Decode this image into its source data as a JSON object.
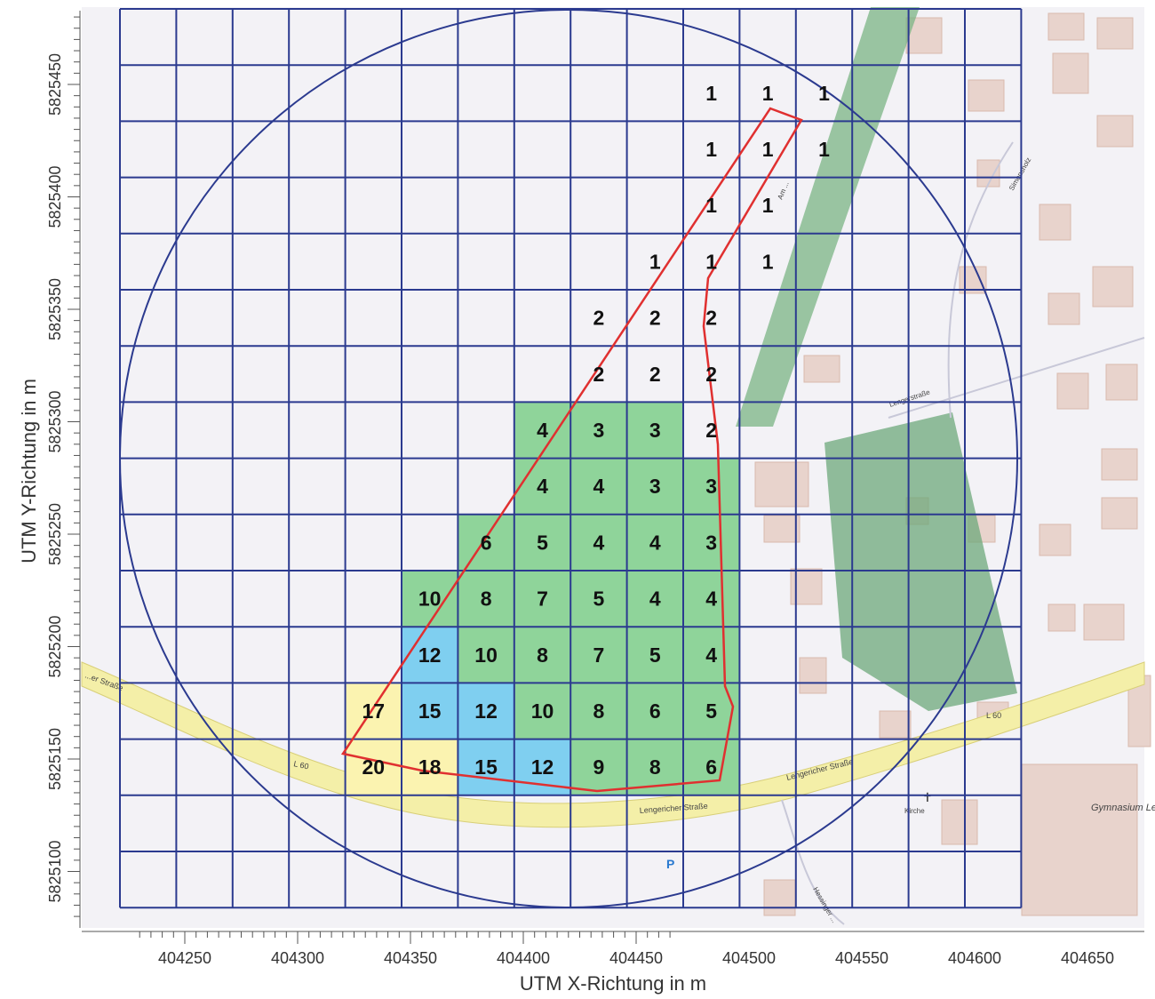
{
  "axes": {
    "x_title": "UTM X-Richtung in m",
    "y_title": "UTM Y-Richtung in m",
    "x_ticks": [
      "404250",
      "404300",
      "404350",
      "404400",
      "404450",
      "404500",
      "404550",
      "404600",
      "404650"
    ],
    "y_ticks": [
      "5825450",
      "5825400",
      "5825350",
      "5825300",
      "5825250",
      "5825200",
      "5825150",
      "5825100"
    ]
  },
  "map_labels": {
    "street_main": "Lengericher Straße",
    "street_main_b": "Lengericher Straße",
    "street_left": "...er Straße",
    "route_left": "L 60",
    "route_right": "L 60",
    "street_top": "Lengerstraße",
    "am_path": "Am ...",
    "simonsholz": "Simonsholz",
    "church": "Kirche",
    "school": "Gymnasium Leoninum",
    "parking": "P",
    "hessinger": "Hessinger ..."
  },
  "colors": {
    "grid": "#2b3a8f",
    "circle": "#2b3a8f",
    "boundary": "#e03030",
    "green": "#8fd49a",
    "blue": "#7fcff0",
    "yellow": "#fbf3b0",
    "road": "#f4efa8",
    "forest": "#7bb484"
  },
  "cells": [
    {
      "col": 10,
      "row": 1,
      "value": "1",
      "fill": "none"
    },
    {
      "col": 11,
      "row": 1,
      "value": "1",
      "fill": "none"
    },
    {
      "col": 12,
      "row": 1,
      "value": "1",
      "fill": "none"
    },
    {
      "col": 10,
      "row": 2,
      "value": "1",
      "fill": "none"
    },
    {
      "col": 11,
      "row": 2,
      "value": "1",
      "fill": "none"
    },
    {
      "col": 12,
      "row": 2,
      "value": "1",
      "fill": "none"
    },
    {
      "col": 10,
      "row": 3,
      "value": "1",
      "fill": "none"
    },
    {
      "col": 11,
      "row": 3,
      "value": "1",
      "fill": "none"
    },
    {
      "col": 9,
      "row": 4,
      "value": "1",
      "fill": "none"
    },
    {
      "col": 10,
      "row": 4,
      "value": "1",
      "fill": "none"
    },
    {
      "col": 11,
      "row": 4,
      "value": "1",
      "fill": "none"
    },
    {
      "col": 8,
      "row": 5,
      "value": "2",
      "fill": "none"
    },
    {
      "col": 9,
      "row": 5,
      "value": "2",
      "fill": "none"
    },
    {
      "col": 10,
      "row": 5,
      "value": "2",
      "fill": "none"
    },
    {
      "col": 8,
      "row": 6,
      "value": "2",
      "fill": "none"
    },
    {
      "col": 9,
      "row": 6,
      "value": "2",
      "fill": "none"
    },
    {
      "col": 10,
      "row": 6,
      "value": "2",
      "fill": "none"
    },
    {
      "col": 7,
      "row": 7,
      "value": "4",
      "fill": "green"
    },
    {
      "col": 8,
      "row": 7,
      "value": "3",
      "fill": "green"
    },
    {
      "col": 9,
      "row": 7,
      "value": "3",
      "fill": "green"
    },
    {
      "col": 10,
      "row": 7,
      "value": "2",
      "fill": "none"
    },
    {
      "col": 7,
      "row": 8,
      "value": "4",
      "fill": "green"
    },
    {
      "col": 8,
      "row": 8,
      "value": "4",
      "fill": "green"
    },
    {
      "col": 9,
      "row": 8,
      "value": "3",
      "fill": "green"
    },
    {
      "col": 10,
      "row": 8,
      "value": "3",
      "fill": "green"
    },
    {
      "col": 6,
      "row": 9,
      "value": "6",
      "fill": "green"
    },
    {
      "col": 7,
      "row": 9,
      "value": "5",
      "fill": "green"
    },
    {
      "col": 8,
      "row": 9,
      "value": "4",
      "fill": "green"
    },
    {
      "col": 9,
      "row": 9,
      "value": "4",
      "fill": "green"
    },
    {
      "col": 10,
      "row": 9,
      "value": "3",
      "fill": "green"
    },
    {
      "col": 5,
      "row": 10,
      "value": "10",
      "fill": "green"
    },
    {
      "col": 6,
      "row": 10,
      "value": "8",
      "fill": "green"
    },
    {
      "col": 7,
      "row": 10,
      "value": "7",
      "fill": "green"
    },
    {
      "col": 8,
      "row": 10,
      "value": "5",
      "fill": "green"
    },
    {
      "col": 9,
      "row": 10,
      "value": "4",
      "fill": "green"
    },
    {
      "col": 10,
      "row": 10,
      "value": "4",
      "fill": "green"
    },
    {
      "col": 5,
      "row": 11,
      "value": "12",
      "fill": "blue"
    },
    {
      "col": 6,
      "row": 11,
      "value": "10",
      "fill": "green"
    },
    {
      "col": 7,
      "row": 11,
      "value": "8",
      "fill": "green"
    },
    {
      "col": 8,
      "row": 11,
      "value": "7",
      "fill": "green"
    },
    {
      "col": 9,
      "row": 11,
      "value": "5",
      "fill": "green"
    },
    {
      "col": 10,
      "row": 11,
      "value": "4",
      "fill": "green"
    },
    {
      "col": 4,
      "row": 12,
      "value": "17",
      "fill": "yellow"
    },
    {
      "col": 5,
      "row": 12,
      "value": "15",
      "fill": "blue"
    },
    {
      "col": 6,
      "row": 12,
      "value": "12",
      "fill": "blue"
    },
    {
      "col": 7,
      "row": 12,
      "value": "10",
      "fill": "green"
    },
    {
      "col": 8,
      "row": 12,
      "value": "8",
      "fill": "green"
    },
    {
      "col": 9,
      "row": 12,
      "value": "6",
      "fill": "green"
    },
    {
      "col": 10,
      "row": 12,
      "value": "5",
      "fill": "green"
    },
    {
      "col": 4,
      "row": 13,
      "value": "20",
      "fill": "yellow"
    },
    {
      "col": 5,
      "row": 13,
      "value": "18",
      "fill": "yellow"
    },
    {
      "col": 6,
      "row": 13,
      "value": "15",
      "fill": "blue"
    },
    {
      "col": 7,
      "row": 13,
      "value": "12",
      "fill": "blue"
    },
    {
      "col": 8,
      "row": 13,
      "value": "9",
      "fill": "green"
    },
    {
      "col": 9,
      "row": 13,
      "value": "8",
      "fill": "green"
    },
    {
      "col": 10,
      "row": 13,
      "value": "6",
      "fill": "green"
    }
  ]
}
